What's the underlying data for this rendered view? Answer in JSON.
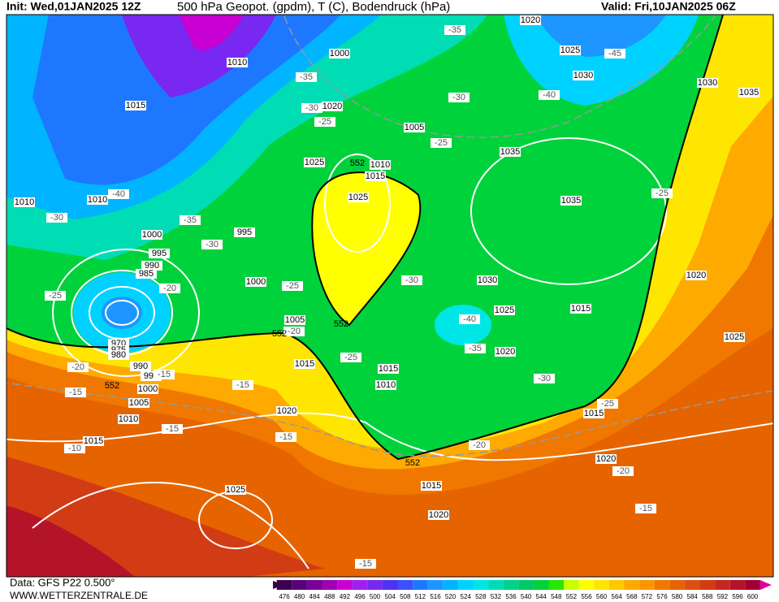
{
  "header": {
    "init": "Init: Wed,01JAN2025 12Z",
    "title": "500 hPa Geopot. (gpdm), T (C), Bodendruck (hPa)",
    "valid": "Valid: Fri,10JAN2025 06Z"
  },
  "footer": {
    "source": "Data: GFS P22 0.500°",
    "site": "WWW.WETTERZENTRALE.DE"
  },
  "colorbar": {
    "values": [
      476,
      480,
      484,
      488,
      492,
      496,
      500,
      504,
      508,
      512,
      516,
      520,
      524,
      528,
      532,
      536,
      540,
      544,
      548,
      552,
      556,
      560,
      564,
      568,
      572,
      576,
      580,
      584,
      588,
      592,
      596,
      600
    ],
    "colors": [
      "#3c0050",
      "#5a0078",
      "#7a0096",
      "#a000b4",
      "#c800d2",
      "#a020f0",
      "#7828f0",
      "#5032f0",
      "#3c50ff",
      "#1e78ff",
      "#1e96ff",
      "#00b4ff",
      "#00d2ff",
      "#00e6e6",
      "#00dcb4",
      "#00d28c",
      "#00c864",
      "#00d23c",
      "#28e600",
      "#c8ff00",
      "#ffff00",
      "#ffe600",
      "#ffc800",
      "#ffaa00",
      "#ff9600",
      "#f07800",
      "#e66400",
      "#dc5014",
      "#d23c14",
      "#c3281e",
      "#b41428",
      "#a00032"
    ]
  },
  "map": {
    "isobar_labels": [
      "1010",
      "1000",
      "1020",
      "1025",
      "1030",
      "1030",
      "1035",
      "1015",
      "1020",
      "1005",
      "1035",
      "1025",
      "1010",
      "1015",
      "1010",
      "1010",
      "1025",
      "1035",
      "995",
      "1000",
      "995",
      "990",
      "985",
      "1000",
      "1030",
      "1020",
      "1025",
      "1015",
      "1005",
      "1025",
      "1020",
      "1015",
      "1015",
      "970",
      "975",
      "980",
      "990",
      "995",
      "1000",
      "1010",
      "1005",
      "1020",
      "1015",
      "1010",
      "1015",
      "1020",
      "1015",
      "1025",
      "1020"
    ],
    "temperature_labels": [
      "-35",
      "-45",
      "-35",
      "-30",
      "-40",
      "-30",
      "-25",
      "-25",
      "-25",
      "-40",
      "-30",
      "-35",
      "-30",
      "-20",
      "-25",
      "-30",
      "-25",
      "-40",
      "-20",
      "-35",
      "-25",
      "-30",
      "-20",
      "-15",
      "-15",
      "-15",
      "-25",
      "-15",
      "-15",
      "-10",
      "-20",
      "-20",
      "-15",
      "-15"
    ],
    "height_labels": [
      "552",
      "552",
      "552",
      "552",
      "552"
    ]
  }
}
